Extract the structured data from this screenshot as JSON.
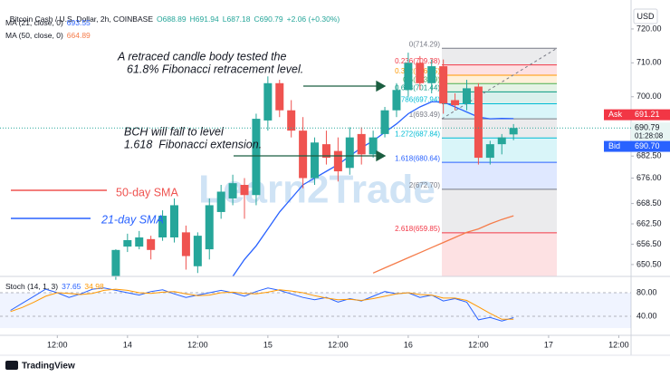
{
  "chart_data": {
    "type": "candlestick",
    "title": "Bitcoin Cash / U.S. Dollar, 2h, COINBASE",
    "ohlc_legend": [
      "O688.89",
      "H691.94",
      "L687.18",
      "C690.79"
    ],
    "change": "+2.06 (+0.30%)",
    "y_unit": "USD",
    "up_color": "#26a69a",
    "down_color": "#ef5350",
    "x": [
      -2,
      0,
      2,
      4,
      6,
      8,
      10,
      12,
      14,
      16,
      18,
      20,
      22,
      24,
      26,
      28,
      30,
      32,
      34,
      36,
      38,
      40,
      42,
      44,
      46,
      48,
      50,
      52,
      54,
      56,
      58,
      60,
      62,
      64,
      66
    ],
    "open": [
      647,
      655.8,
      655.8,
      658,
      658.5,
      658.5,
      660,
      650,
      655,
      666,
      670,
      674,
      671,
      693,
      704,
      696,
      690,
      676,
      686,
      684,
      679,
      689,
      683,
      689,
      696,
      702,
      710,
      704,
      709,
      699,
      698,
      703,
      682,
      686,
      688.89
    ],
    "high": [
      655,
      659.6,
      660.4,
      659,
      666.5,
      670,
      662,
      660,
      670,
      674,
      677,
      676,
      695,
      706,
      705,
      699,
      694,
      688,
      690,
      688,
      691,
      691,
      690,
      697,
      704,
      713,
      712,
      711,
      711,
      701,
      705,
      704,
      687,
      689,
      691.94
    ],
    "low": [
      646,
      654.2,
      655,
      652,
      657.5,
      657,
      649,
      648,
      652,
      664,
      668,
      664,
      668,
      690,
      694,
      688,
      673,
      674,
      680,
      675,
      677,
      680,
      682,
      688,
      694,
      700,
      702,
      701,
      695,
      696,
      696,
      680,
      680,
      683,
      687.18
    ],
    "close": [
      654.8,
      657.7,
      658.5,
      654.8,
      664.9,
      668,
      653,
      659,
      668,
      672,
      674.5,
      671,
      693.5,
      704,
      696,
      690,
      676,
      686.5,
      682,
      678,
      688,
      683,
      688,
      696,
      702,
      710,
      704,
      709,
      698,
      697.5,
      702.5,
      682,
      686,
      688,
      690.79
    ],
    "xlim": [
      -21.8,
      86.1
    ],
    "xticks": [
      {
        "value": -12,
        "label": "12:00"
      },
      {
        "value": 0,
        "label": "14"
      },
      {
        "value": 12,
        "label": "12:00"
      },
      {
        "value": 24,
        "label": "15"
      },
      {
        "value": 36,
        "label": "12:00"
      },
      {
        "value": 48,
        "label": "16"
      },
      {
        "value": 60,
        "label": "12:00"
      },
      {
        "value": 72,
        "label": "17"
      },
      {
        "value": 84,
        "label": "12:00"
      }
    ],
    "ylim": [
      647,
      726.4
    ],
    "yticks": [
      {
        "value": 720,
        "label": "720.00"
      },
      {
        "value": 710,
        "label": "710.00"
      },
      {
        "value": 700,
        "label": "700.00"
      },
      {
        "value": 682.5,
        "label": "682.50"
      },
      {
        "value": 676,
        "label": "676.00"
      },
      {
        "value": 668.5,
        "label": "668.50"
      },
      {
        "value": 662.5,
        "label": "662.50"
      },
      {
        "value": 656.5,
        "label": "656.50"
      },
      {
        "value": 650.5,
        "label": "650.50"
      }
    ],
    "indicators": [
      {
        "name": "MA (21, close, 0)",
        "value": 693.55,
        "color": "#2962ff",
        "x": [
          18,
          20,
          22,
          24,
          26,
          28,
          30,
          32,
          34,
          36,
          38,
          40,
          42,
          44,
          46,
          48,
          50,
          52,
          54,
          56,
          58,
          60,
          62,
          64,
          66
        ],
        "values": [
          647,
          652,
          656,
          661,
          666,
          670,
          674,
          676,
          678,
          680,
          682.5,
          685,
          687,
          689.5,
          692,
          695,
          697,
          698.5,
          698.5,
          697,
          695.5,
          694,
          693.5,
          693.6,
          693.55
        ]
      },
      {
        "name": "MA (50, close, 0)",
        "value": 664.89,
        "color": "#f57c4a",
        "x": [
          42,
          44,
          46,
          48,
          50,
          52,
          54,
          56,
          58,
          60,
          62,
          64,
          66
        ],
        "values": [
          648,
          649.5,
          651,
          652.5,
          654,
          655.5,
          657,
          658.5,
          660,
          661,
          662.5,
          663.8,
          664.89
        ]
      }
    ],
    "fib": {
      "levels": [
        {
          "value": 714.29,
          "label": "0(714.29)",
          "color": "#787b86"
        },
        {
          "value": 709.38,
          "label": "0.236(709.38)",
          "color": "#f23645"
        },
        {
          "value": 706.35,
          "label": "0.382(706.35)",
          "color": "#ff9800"
        },
        {
          "value": 703.89,
          "label": "0.5(703.89)",
          "color": "#4caf50"
        },
        {
          "value": 701.44,
          "label": "0.618(701.44)",
          "color": "#089981"
        },
        {
          "value": 697.94,
          "label": "0.786(697.94)",
          "color": "#00bcd4"
        },
        {
          "value": 693.49,
          "label": "1(693.49)",
          "color": "#787b86"
        },
        {
          "value": 687.84,
          "label": "1.272(687.84)",
          "color": "#00bcd4"
        },
        {
          "value": 680.64,
          "label": "1.618(680.64)",
          "color": "#2962ff"
        },
        {
          "value": 672.7,
          "label": "2(672.70)",
          "color": "#787b86"
        },
        {
          "value": 659.85,
          "label": "2.618(659.85)",
          "color": "#f23645"
        }
      ]
    },
    "price_tags": [
      {
        "name": "Ask",
        "value": 691.21,
        "label": "691.21",
        "color": "#f23645"
      },
      {
        "value": 690.79,
        "label": "690.79",
        "countdown": "01:28:08",
        "color": "#26a69a"
      },
      {
        "name": "Bid",
        "value": 690.7,
        "label": "690.70",
        "color": "#2962ff"
      }
    ],
    "annotations": [
      "A retraced candle body tested the",
      "61.8% Fibonacci retracement level.",
      "BCH will fall to level",
      "1.618  Fibonacci extension.",
      "50-day SMA",
      "21-day SMA"
    ],
    "watermark": "Learn2Trade",
    "stoch": {
      "name": "Stoch (14, 1, 3)",
      "ylim": [
        7.7,
        107.7
      ],
      "yticks": [
        {
          "value": 80,
          "label": "80.00"
        },
        {
          "value": 40,
          "label": "40.00"
        }
      ],
      "x": [
        -20,
        -18,
        -16,
        -14,
        -12,
        -10,
        -8,
        -6,
        -4,
        -2,
        0,
        2,
        4,
        6,
        8,
        10,
        12,
        14,
        16,
        18,
        20,
        22,
        24,
        26,
        28,
        30,
        32,
        34,
        36,
        38,
        40,
        42,
        44,
        46,
        48,
        50,
        52,
        54,
        56,
        58,
        60,
        62,
        64,
        66
      ],
      "series": [
        {
          "value": 37.65,
          "color": "#2962ff",
          "values": [
            50,
            62,
            74,
            86,
            80,
            72,
            78,
            86,
            88,
            84,
            80,
            76,
            82,
            85,
            78,
            72,
            76,
            80,
            84,
            80,
            74,
            82,
            88,
            84,
            78,
            72,
            68,
            72,
            64,
            70,
            66,
            74,
            82,
            78,
            80,
            72,
            76,
            66,
            70,
            64,
            34,
            38,
            32,
            37.65
          ]
        },
        {
          "value": 34.98,
          "color": "#ff9800",
          "values": [
            48,
            55,
            64,
            74,
            80,
            79,
            77,
            79,
            84,
            86,
            84,
            80,
            79,
            81,
            82,
            78,
            75,
            76,
            80,
            81,
            79,
            78,
            81,
            85,
            83,
            80,
            75,
            71,
            68,
            69,
            67,
            70,
            74,
            78,
            80,
            77,
            76,
            71,
            71,
            67,
            56,
            45,
            35,
            34.98
          ]
        }
      ]
    },
    "footer": "TradingView"
  }
}
